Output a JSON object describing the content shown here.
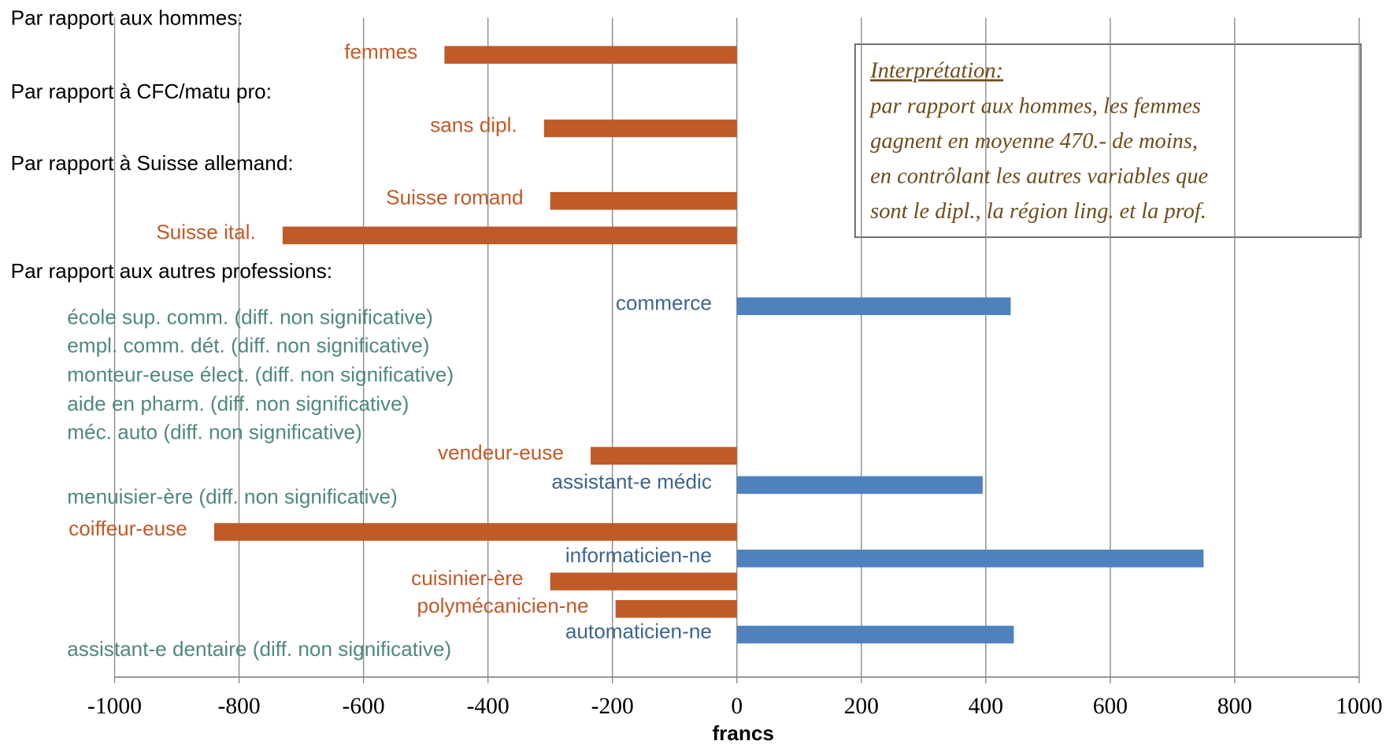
{
  "chart_data": {
    "type": "bar",
    "orientation": "horizontal",
    "x_label": "francs",
    "xlim": [
      -1000,
      1000
    ],
    "xticks": [
      -1000,
      -800,
      -600,
      -400,
      -200,
      0,
      200,
      400,
      600,
      800,
      1000
    ],
    "grid": true,
    "colors": {
      "negative": "#c05a28",
      "positive": "#4f81bd",
      "non_significant_label": "#4e8880",
      "positive_label": "#3d6590",
      "header": "#000000"
    },
    "groups": [
      {
        "name": "Par rapport aux hommes:",
        "categories": [
          "femmes"
        ],
        "values": [
          -470
        ]
      },
      {
        "name": "Par rapport à CFC/matu pro:",
        "categories": [
          "sans dipl."
        ],
        "values": [
          -310
        ]
      },
      {
        "name": "Par rapport à Suisse allemand:",
        "categories": [
          "Suisse romand",
          "Suisse ital."
        ],
        "values": [
          -300,
          -730
        ]
      },
      {
        "name": "Par rapport aux autres professions:",
        "categories": [
          "commerce",
          "école sup. comm. (diff. non significative)",
          "empl. comm. dét. (diff. non significative)",
          "monteur-euse élect. (diff. non significative)",
          "aide en pharm. (diff. non significative)",
          "méc. auto (diff. non significative)",
          "vendeur-euse",
          "assistant-e médic",
          "menuisier-ère (diff. non significative)",
          "coiffeur-euse",
          "informaticien-ne",
          "cuisinier-ère",
          "polymécanicien-ne",
          "automaticien-ne",
          "assistant-e dentaire (diff. non significative)"
        ],
        "values": [
          440,
          null,
          null,
          null,
          null,
          null,
          -235,
          395,
          null,
          -840,
          750,
          -300,
          -195,
          445,
          null
        ]
      }
    ],
    "annotation": {
      "title": "Interprétation:",
      "lines": [
        "par rapport aux hommes, les femmes",
        "gagnent en moyenne 470.- de moins,",
        "en contrôlant les autres variables que",
        "sont le dipl., la région ling. et la prof."
      ]
    }
  }
}
